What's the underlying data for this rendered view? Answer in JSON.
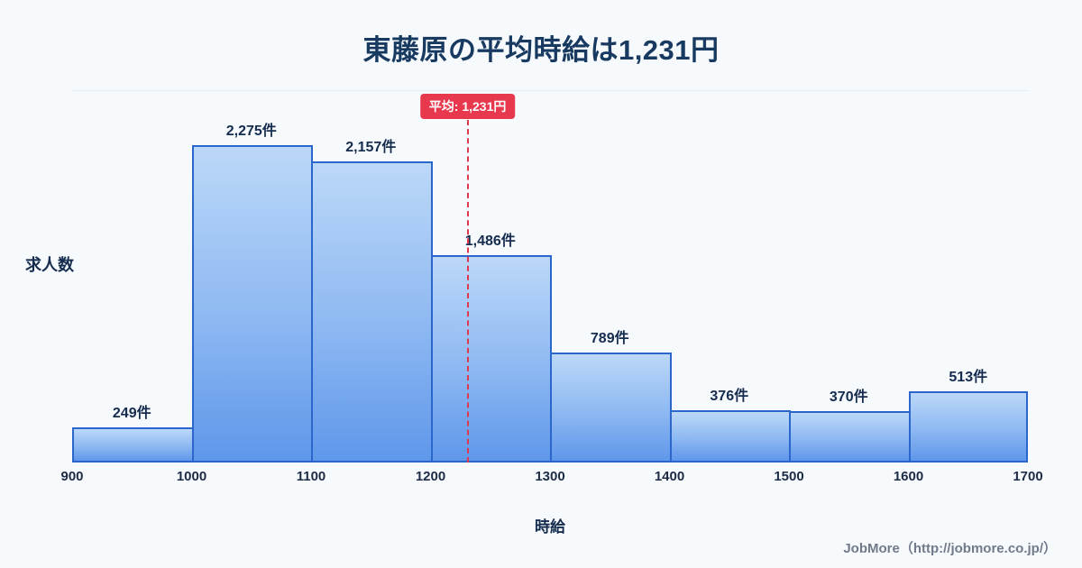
{
  "title": "東藤原の平均時給は1,231円",
  "chart_data": {
    "type": "bar",
    "subtype": "histogram",
    "bins": [
      "900-1000",
      "1000-1100",
      "1100-1200",
      "1200-1300",
      "1300-1400",
      "1400-1500",
      "1500-1600",
      "1600-1700"
    ],
    "values": [
      249,
      2275,
      2157,
      1486,
      789,
      376,
      370,
      513
    ],
    "value_labels": [
      "249件",
      "2,275件",
      "2,157件",
      "1,486件",
      "789件",
      "376件",
      "370件",
      "513件"
    ],
    "tick_labels": [
      "900",
      "1000",
      "1100",
      "1200",
      "1300",
      "1400",
      "1500",
      "1600",
      "1700"
    ],
    "xrange": [
      900,
      1700
    ],
    "ylim": [
      0,
      2660
    ],
    "xlabel": "時給",
    "ylabel": "求人数",
    "legend": "none",
    "grid": "top-line-only",
    "average": {
      "value": 1231,
      "label": "平均: 1,231円"
    },
    "colors": {
      "background": "#f7fafd",
      "bar_fill_top": "#bcd8f8",
      "bar_fill_bottom": "#5f97ea",
      "bar_border": "#2b66cc",
      "average_line": "#e0394e",
      "average_badge_bg": "#e8384d",
      "title_text": "#183a61"
    }
  },
  "footer": {
    "credit": "JobMore（http://jobmore.co.jp/）"
  }
}
